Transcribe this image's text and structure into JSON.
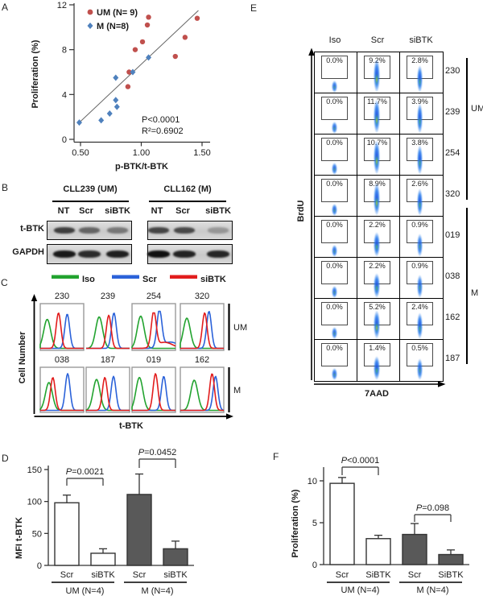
{
  "panel_letters": {
    "A": "A",
    "B": "B",
    "C": "C",
    "D": "D",
    "E": "E",
    "F": "F"
  },
  "colors": {
    "um_red": "#c0504d",
    "m_blue": "#4f81bd",
    "iso_green": "#22a32f",
    "scr_blue": "#2b62d9",
    "sibtk_red": "#e21d1d",
    "bar_filled": "#595959",
    "bar_open": "#ffffff",
    "axis": "#333333",
    "trendline": "#666666"
  },
  "panelB": {
    "row_labels": [
      "t-BTK",
      "GAPDH"
    ],
    "groups": [
      {
        "title": "CLL239 (UM)",
        "lanes": [
          "NT",
          "Scr",
          "siBTK"
        ],
        "blots": [
          {
            "row": "t-BTK",
            "band_alphas": [
              0.75,
              0.55,
              0.45
            ]
          },
          {
            "row": "GAPDH",
            "band_alphas": [
              0.95,
              0.85,
              0.92
            ]
          }
        ]
      },
      {
        "title": "CLL162 (M)",
        "lanes": [
          "NT",
          "Scr",
          "siBTK"
        ],
        "blots": [
          {
            "row": "t-BTK",
            "band_alphas": [
              0.72,
              0.7,
              0.28
            ]
          },
          {
            "row": "GAPDH",
            "band_alphas": [
              1.0,
              0.9,
              0.88
            ]
          }
        ]
      }
    ]
  },
  "chart_data": [
    {
      "panel": "A",
      "type": "scatter",
      "xlabel": "p-BTK/t-BTK",
      "ylabel": "Proliferation (%)",
      "xlim": [
        0.5,
        1.5
      ],
      "xtick_labels": [
        "0.50",
        "1.00",
        "1.50"
      ],
      "xtick_values": [
        0.5,
        1.0,
        1.5
      ],
      "ylim": [
        0,
        12
      ],
      "yticks": [
        0,
        4,
        8,
        12
      ],
      "annotations": [
        "P<0.0001",
        "R²=0.6902"
      ],
      "trendline": {
        "x": [
          0.5,
          1.47
        ],
        "y": [
          1.6,
          11.5
        ]
      },
      "series": [
        {
          "name": "UM (N= 9)",
          "marker": "circle",
          "color": "#c0504d",
          "points": [
            [
              1.06,
              10.9
            ],
            [
              1.05,
              10.2
            ],
            [
              1.46,
              10.8
            ],
            [
              1.01,
              8.7
            ],
            [
              1.36,
              9.1
            ],
            [
              0.95,
              8.0
            ],
            [
              1.28,
              7.4
            ],
            [
              0.9,
              6.0
            ],
            [
              0.89,
              4.7
            ]
          ]
        },
        {
          "name": "M (N=8)",
          "marker": "diamond",
          "color": "#4f81bd",
          "points": [
            [
              0.49,
              1.5
            ],
            [
              0.67,
              1.7
            ],
            [
              0.74,
              2.3
            ],
            [
              0.8,
              2.9
            ],
            [
              0.79,
              3.5
            ],
            [
              0.79,
              5.5
            ],
            [
              0.93,
              6.0
            ],
            [
              1.06,
              7.3
            ]
          ]
        }
      ]
    },
    {
      "panel": "C",
      "type": "histogram-overlay",
      "xlabel": "t-BTK",
      "ylabel": "Cell Number",
      "legend": [
        {
          "label": "Iso",
          "color": "#22a32f"
        },
        {
          "label": "Scr",
          "color": "#2b62d9"
        },
        {
          "label": "siBTK",
          "color": "#e21d1d"
        }
      ],
      "row_groups": [
        {
          "label": "UM",
          "samples": [
            "230",
            "239",
            "254",
            "320"
          ]
        },
        {
          "label": "M",
          "samples": [
            "038",
            "187",
            "019",
            "162"
          ]
        }
      ],
      "curves": {
        "230": {
          "box": true,
          "iso": [
            0.16,
            0.72
          ],
          "scr": [
            0.62,
            0.85
          ],
          "sibtk": [
            0.42,
            0.88
          ],
          "tail": false
        },
        "239": {
          "box": false,
          "iso": [
            0.3,
            0.78
          ],
          "scr": [
            0.64,
            0.88
          ],
          "sibtk": [
            0.52,
            0.82
          ],
          "tail": false
        },
        "254": {
          "box": true,
          "iso": [
            0.2,
            0.8
          ],
          "scr": [
            0.63,
            0.92
          ],
          "sibtk": [
            0.5,
            0.88
          ],
          "tail": true
        },
        "320": {
          "box": true,
          "iso": [
            0.15,
            0.75
          ],
          "scr": [
            0.66,
            0.92
          ],
          "sibtk": [
            0.56,
            0.88
          ],
          "tail": false
        },
        "038": {
          "box": true,
          "iso": [
            0.2,
            0.72
          ],
          "scr": [
            0.63,
            0.95
          ],
          "sibtk": [
            0.29,
            0.85
          ],
          "tail": false
        },
        "187": {
          "box": true,
          "iso": [
            0.24,
            0.8
          ],
          "scr": [
            0.63,
            0.88
          ],
          "sibtk": [
            0.43,
            0.85
          ],
          "tail": false
        },
        "019": {
          "box": true,
          "iso": [
            0.17,
            0.85
          ],
          "scr": [
            0.73,
            0.88
          ],
          "sibtk": [
            0.54,
            0.95
          ],
          "tail": false
        },
        "162": {
          "box": true,
          "iso": [
            0.32,
            0.78
          ],
          "scr": [
            0.81,
            0.88
          ],
          "sibtk": [
            0.73,
            0.95
          ],
          "tail": false
        }
      }
    },
    {
      "panel": "D",
      "type": "bar",
      "ylabel": "MFI t-BTK",
      "ylim": [
        0,
        150
      ],
      "yticks": [
        0,
        50,
        100,
        150
      ],
      "groups": [
        {
          "label": "UM (N=4)",
          "pvalue": "P=0.0021",
          "bars": [
            {
              "label": "Scr",
              "value": 98,
              "err_top": 110,
              "style": "open"
            },
            {
              "label": "siBTK",
              "value": 19,
              "err_top": 26,
              "style": "open"
            }
          ]
        },
        {
          "label": "M (N=4)",
          "pvalue": "P=0.0452",
          "bars": [
            {
              "label": "Scr",
              "value": 111,
              "err_top": 143,
              "style": "filled"
            },
            {
              "label": "siBTK",
              "value": 26,
              "err_top": 38,
              "style": "filled"
            }
          ]
        }
      ]
    },
    {
      "panel": "E",
      "type": "flow-grid",
      "xlabel": "7AAD",
      "ylabel": "BrdU",
      "columns": [
        "Iso",
        "Scr",
        "siBTK"
      ],
      "groups": [
        {
          "label": "UM",
          "rows": [
            {
              "id": "230",
              "values": [
                "0.0%",
                "9.2%",
                "2.8%"
              ],
              "numeric": [
                0.0,
                9.2,
                2.8
              ]
            },
            {
              "id": "239",
              "values": [
                "0.0%",
                "11.7%",
                "3.9%"
              ],
              "numeric": [
                0.0,
                11.7,
                3.9
              ]
            },
            {
              "id": "254",
              "values": [
                "0.0%",
                "10.7%",
                "3.8%"
              ],
              "numeric": [
                0.0,
                10.7,
                3.8
              ]
            },
            {
              "id": "320",
              "values": [
                "0.0%",
                "8.9%",
                "2.6%"
              ],
              "numeric": [
                0.0,
                8.9,
                2.6
              ]
            }
          ]
        },
        {
          "label": "M",
          "rows": [
            {
              "id": "019",
              "values": [
                "0.0%",
                "2.2%",
                "0.9%"
              ],
              "numeric": [
                0.0,
                2.2,
                0.9
              ]
            },
            {
              "id": "038",
              "values": [
                "0.0%",
                "2.2%",
                "0.9%"
              ],
              "numeric": [
                0.0,
                2.2,
                0.9
              ]
            },
            {
              "id": "162",
              "values": [
                "0.0%",
                "5.2%",
                "2.4%"
              ],
              "numeric": [
                0.0,
                5.2,
                2.4
              ]
            },
            {
              "id": "187",
              "values": [
                "0.0%",
                "1.4%",
                "0.5%"
              ],
              "numeric": [
                0.0,
                1.4,
                0.5
              ]
            }
          ]
        }
      ]
    },
    {
      "panel": "F",
      "type": "bar",
      "ylabel": "Proliferation (%)",
      "ylim": [
        0,
        12
      ],
      "yticks": [
        0,
        5,
        10
      ],
      "groups": [
        {
          "label": "UM (N=4)",
          "pvalue": "P<0.0001",
          "bars": [
            {
              "label": "Scr",
              "value": 9.7,
              "err_top": 10.4,
              "style": "open"
            },
            {
              "label": "SiBTK",
              "value": 3.1,
              "err_top": 3.5,
              "style": "open"
            }
          ]
        },
        {
          "label": "M (N=4)",
          "pvalue": "P=0.098",
          "bars": [
            {
              "label": "Scr",
              "value": 3.6,
              "err_top": 4.9,
              "style": "filled"
            },
            {
              "label": "SiBTK",
              "value": 1.2,
              "err_top": 1.75,
              "style": "filled"
            }
          ]
        }
      ]
    }
  ]
}
